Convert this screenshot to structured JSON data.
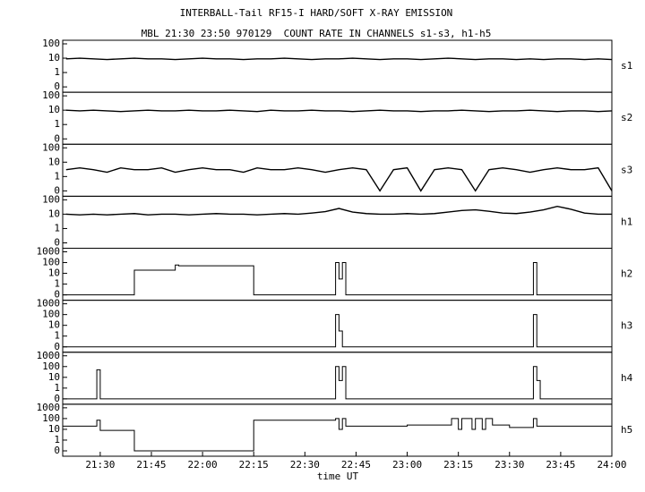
{
  "chart_data": {
    "type": "line",
    "title": "INTERBALL-Tail RF15-I HARD/SOFT X-RAY EMISSION",
    "subtitle": "MBL 21:30 23:50 970129  COUNT RATE IN CHANNELS s1-s3, h1-h5",
    "xlabel": "time UT",
    "xlim": [
      "21:19",
      "24:00"
    ],
    "xticks": [
      "21:30",
      "21:45",
      "22:00",
      "22:15",
      "22:30",
      "22:45",
      "23:00",
      "23:15",
      "23:30",
      "23:45",
      "24:00"
    ],
    "x": [
      "21:20",
      "21:24",
      "21:28",
      "21:32",
      "21:36",
      "21:40",
      "21:44",
      "21:48",
      "21:52",
      "21:56",
      "22:00",
      "22:04",
      "22:08",
      "22:12",
      "22:16",
      "22:20",
      "22:24",
      "22:28",
      "22:32",
      "22:36",
      "22:40",
      "22:44",
      "22:48",
      "22:52",
      "22:56",
      "23:00",
      "23:04",
      "23:08",
      "23:12",
      "23:16",
      "23:20",
      "23:24",
      "23:28",
      "23:32",
      "23:36",
      "23:40",
      "23:44",
      "23:48",
      "23:52",
      "23:56",
      "24:00"
    ],
    "yscale": "log",
    "color": "#000000",
    "series": [
      {
        "name": "s1",
        "ylim": [
          0,
          100
        ],
        "yticks": [
          0,
          1,
          10,
          100
        ],
        "values": [
          9,
          10,
          9,
          8,
          9,
          10,
          9,
          9,
          8,
          9,
          10,
          9,
          9,
          8,
          9,
          9,
          10,
          9,
          8,
          9,
          9,
          10,
          9,
          8,
          9,
          9,
          8,
          9,
          10,
          9,
          8,
          9,
          9,
          8,
          9,
          8,
          9,
          9,
          8,
          9,
          8
        ]
      },
      {
        "name": "s2",
        "ylim": [
          0,
          100
        ],
        "yticks": [
          0,
          1,
          10,
          100
        ],
        "values": [
          10,
          9,
          10,
          9,
          8,
          9,
          10,
          9,
          9,
          10,
          9,
          9,
          10,
          9,
          8,
          10,
          9,
          9,
          10,
          9,
          9,
          8,
          9,
          10,
          9,
          9,
          8,
          9,
          9,
          10,
          9,
          8,
          9,
          9,
          10,
          9,
          8,
          9,
          9,
          8,
          9
        ]
      },
      {
        "name": "s3",
        "ylim": [
          0,
          100
        ],
        "yticks": [
          0,
          1,
          10,
          100
        ],
        "values": [
          3,
          4,
          3,
          2,
          4,
          3,
          3,
          4,
          2,
          3,
          4,
          3,
          3,
          2,
          4,
          3,
          3,
          4,
          3,
          2,
          3,
          4,
          3,
          0,
          3,
          4,
          0,
          3,
          4,
          3,
          0,
          3,
          4,
          3,
          2,
          3,
          4,
          3,
          3,
          4,
          0
        ]
      },
      {
        "name": "h1",
        "ylim": [
          0,
          100
        ],
        "yticks": [
          0,
          1,
          10,
          100
        ],
        "values": [
          10,
          9,
          10,
          9,
          10,
          11,
          9,
          10,
          10,
          9,
          10,
          11,
          10,
          10,
          9,
          10,
          11,
          10,
          12,
          15,
          25,
          14,
          11,
          10,
          10,
          11,
          10,
          11,
          14,
          18,
          20,
          16,
          12,
          11,
          14,
          20,
          35,
          22,
          12,
          10,
          10
        ]
      },
      {
        "name": "h2",
        "ylim": [
          0,
          1000
        ],
        "yticks": [
          0,
          1,
          10,
          100,
          1000
        ],
        "drawstyle": "steps-post",
        "x": [
          "21:19",
          "21:40",
          "21:52",
          "21:53",
          "22:15",
          "22:39",
          "22:40",
          "22:41",
          "22:42",
          "23:37",
          "23:38",
          "24:00"
        ],
        "values": [
          0,
          20,
          60,
          50,
          0,
          100,
          3,
          100,
          0,
          100,
          0,
          0
        ]
      },
      {
        "name": "h3",
        "ylim": [
          0,
          1000
        ],
        "yticks": [
          0,
          1,
          10,
          100,
          1000
        ],
        "drawstyle": "steps-post",
        "x": [
          "21:19",
          "22:39",
          "22:40",
          "22:41",
          "23:37",
          "23:38",
          "24:00"
        ],
        "values": [
          0,
          100,
          3,
          0,
          100,
          0,
          0
        ]
      },
      {
        "name": "h4",
        "ylim": [
          0,
          1000
        ],
        "yticks": [
          0,
          1,
          10,
          100,
          1000
        ],
        "drawstyle": "steps-post",
        "x": [
          "21:19",
          "21:29",
          "21:30",
          "22:39",
          "22:40",
          "22:41",
          "22:42",
          "23:37",
          "23:38",
          "23:39",
          "24:00"
        ],
        "values": [
          0,
          50,
          0,
          100,
          5,
          100,
          0,
          100,
          5,
          0,
          0
        ]
      },
      {
        "name": "h5",
        "ylim": [
          0,
          1000
        ],
        "yticks": [
          0,
          1,
          10,
          100,
          1000
        ],
        "drawstyle": "steps-post",
        "x": [
          "21:19",
          "21:29",
          "21:30",
          "21:40",
          "22:15",
          "22:39",
          "22:40",
          "22:41",
          "22:42",
          "23:00",
          "23:13",
          "23:15",
          "23:16",
          "23:19",
          "23:20",
          "23:22",
          "23:23",
          "23:25",
          "23:30",
          "23:37",
          "23:38",
          "24:00"
        ],
        "values": [
          20,
          70,
          8,
          0,
          70,
          100,
          10,
          100,
          20,
          25,
          100,
          10,
          100,
          10,
          100,
          10,
          100,
          25,
          15,
          100,
          20,
          20
        ]
      }
    ]
  }
}
